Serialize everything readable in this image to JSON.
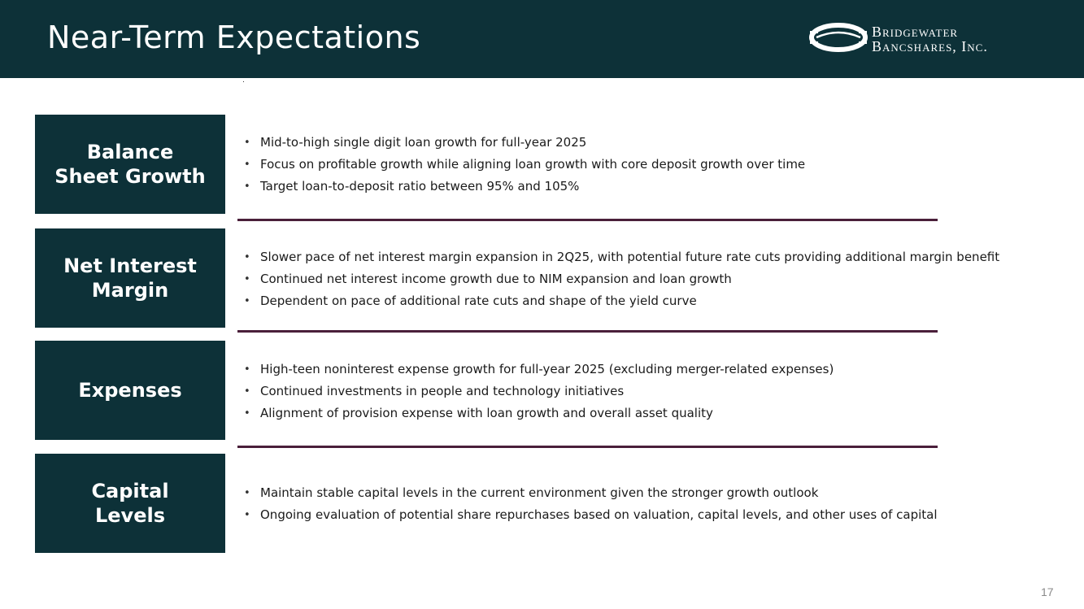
{
  "header": {
    "title": "Near-Term Expectations",
    "logo": {
      "line1": "Bridgewater",
      "line2": "Bancshares, Inc.",
      "icon": "bridgewater-logo-icon"
    },
    "background_color": "#0d3138"
  },
  "sections": [
    {
      "label": "Balance Sheet Growth",
      "bullets": [
        "Mid-to-high single digit loan growth for full-year 2025",
        "Focus on profitable growth while aligning loan growth with core deposit growth over time",
        "Target loan-to-deposit ratio between 95% and 105%"
      ]
    },
    {
      "label": "Net Interest Margin",
      "bullets": [
        "Slower pace of net interest margin expansion in 2Q25, with potential future rate cuts providing additional margin benefit",
        "Continued net interest income growth due to NIM expansion and loan growth",
        "Dependent on pace of additional rate cuts and shape of the yield curve"
      ]
    },
    {
      "label": "Expenses",
      "bullets": [
        "High-teen noninterest expense growth for full-year 2025 (excluding merger-related expenses)",
        "Continued investments in people and technology initiatives",
        "Alignment of provision expense with loan growth and overall asset quality"
      ]
    },
    {
      "label": "Capital Levels",
      "bullets": [
        "Maintain stable capital levels in the current environment given the stronger growth outlook",
        "Ongoing evaluation of potential share repurchases based on valuation, capital levels, and other uses of capital"
      ]
    }
  ],
  "divider_color": "#4a1f3a",
  "page_number": "17"
}
